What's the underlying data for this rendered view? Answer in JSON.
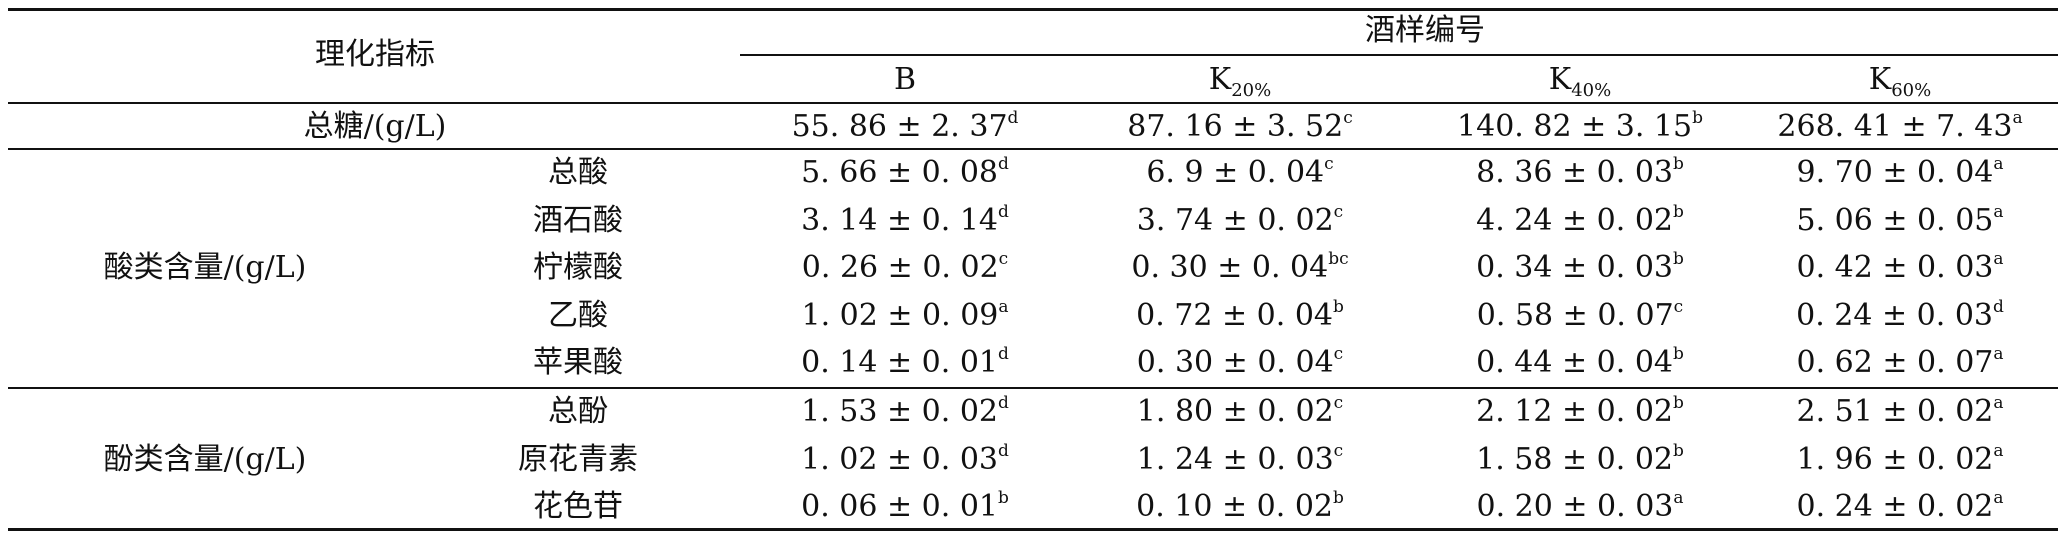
{
  "header": {
    "indicator": "理化指标",
    "sample_group": "酒样编号",
    "columns": [
      {
        "main": "B",
        "sub": ""
      },
      {
        "main": "K",
        "sub": "20%"
      },
      {
        "main": "K",
        "sub": "40%"
      },
      {
        "main": "K",
        "sub": "60%"
      }
    ]
  },
  "sugar_row": {
    "label": "总糖/(g/L)",
    "values": [
      {
        "v": "55. 86 ± 2. 37",
        "s": "d"
      },
      {
        "v": "87. 16 ± 3. 52",
        "s": "c"
      },
      {
        "v": "140. 82 ± 3. 15",
        "s": "b"
      },
      {
        "v": "268. 41 ± 7. 43",
        "s": "a"
      }
    ]
  },
  "acid_group": {
    "label": "酸类含量/(g/L)",
    "rows": [
      {
        "name": "总酸",
        "values": [
          {
            "v": "5. 66 ± 0. 08",
            "s": "d"
          },
          {
            "v": "6. 9 ± 0. 04",
            "s": "c"
          },
          {
            "v": "8. 36 ± 0. 03",
            "s": "b"
          },
          {
            "v": "9. 70 ± 0. 04",
            "s": "a"
          }
        ]
      },
      {
        "name": "酒石酸",
        "values": [
          {
            "v": "3. 14 ± 0. 14",
            "s": "d"
          },
          {
            "v": "3. 74 ± 0. 02",
            "s": "c"
          },
          {
            "v": "4. 24 ± 0. 02",
            "s": "b"
          },
          {
            "v": "5. 06 ± 0. 05",
            "s": "a"
          }
        ]
      },
      {
        "name": "柠檬酸",
        "values": [
          {
            "v": "0. 26 ± 0. 02",
            "s": "c"
          },
          {
            "v": "0. 30 ± 0. 04",
            "s": "bc"
          },
          {
            "v": "0. 34 ± 0. 03",
            "s": "b"
          },
          {
            "v": "0. 42 ± 0. 03",
            "s": "a"
          }
        ]
      },
      {
        "name": "乙酸",
        "values": [
          {
            "v": "1. 02 ± 0. 09",
            "s": "a"
          },
          {
            "v": "0. 72 ± 0. 04",
            "s": "b"
          },
          {
            "v": "0. 58 ± 0. 07",
            "s": "c"
          },
          {
            "v": "0. 24 ± 0. 03",
            "s": "d"
          }
        ]
      },
      {
        "name": "苹果酸",
        "values": [
          {
            "v": "0. 14 ± 0. 01",
            "s": "d"
          },
          {
            "v": "0. 30 ± 0. 04",
            "s": "c"
          },
          {
            "v": "0. 44 ± 0. 04",
            "s": "b"
          },
          {
            "v": "0. 62 ± 0. 07",
            "s": "a"
          }
        ]
      }
    ]
  },
  "phenol_group": {
    "label": "酚类含量/(g/L)",
    "rows": [
      {
        "name": "总酚",
        "values": [
          {
            "v": "1. 53 ± 0. 02",
            "s": "d"
          },
          {
            "v": "1. 80 ± 0. 02",
            "s": "c"
          },
          {
            "v": "2. 12 ± 0. 02",
            "s": "b"
          },
          {
            "v": "2. 51 ± 0. 02",
            "s": "a"
          }
        ]
      },
      {
        "name": "原花青素",
        "values": [
          {
            "v": "1. 02 ± 0. 03",
            "s": "d"
          },
          {
            "v": "1. 24 ± 0. 03",
            "s": "c"
          },
          {
            "v": "1. 58 ± 0. 02",
            "s": "b"
          },
          {
            "v": "1. 96 ± 0. 02",
            "s": "a"
          }
        ]
      },
      {
        "name": "花色苷",
        "values": [
          {
            "v": "0. 06 ± 0. 01",
            "s": "b"
          },
          {
            "v": "0. 10 ± 0. 02",
            "s": "b"
          },
          {
            "v": "0. 20 ± 0. 03",
            "s": "a"
          },
          {
            "v": "0. 24 ± 0. 02",
            "s": "a"
          }
        ]
      }
    ]
  }
}
